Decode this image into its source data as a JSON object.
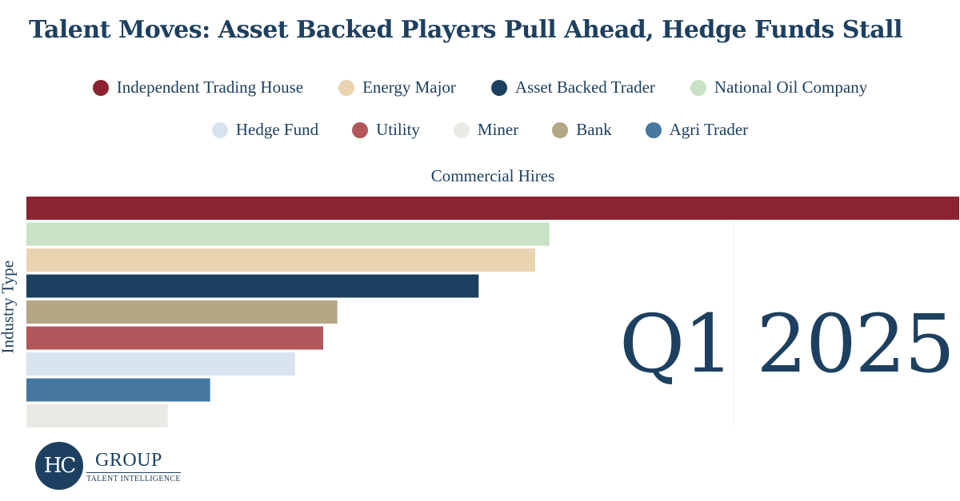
{
  "title": "Talent Moves: Asset Backed Players Pull Ahead, Hedge Funds Stall",
  "period": "Q1 2025",
  "logo": {
    "mark": "HC",
    "name": "GROUP",
    "tagline": "TALENT INTELLIGENCE"
  },
  "legend": [
    {
      "name": "Independent Trading House",
      "color": "#8b2332"
    },
    {
      "name": "Energy Major",
      "color": "#ead4b0"
    },
    {
      "name": "Asset Backed Trader",
      "color": "#1e4060"
    },
    {
      "name": "National Oil Company",
      "color": "#c8e2c6"
    },
    {
      "name": "Hedge Fund",
      "color": "#d8e4f0"
    },
    {
      "name": "Utility",
      "color": "#b1575c"
    },
    {
      "name": "Miner",
      "color": "#ebe9e4"
    },
    {
      "name": "Bank",
      "color": "#b3a785"
    },
    {
      "name": "Agri Trader",
      "color": "#47789f"
    }
  ],
  "chart_data": {
    "type": "bar",
    "orientation": "horizontal",
    "xlabel": "Commercial Hires",
    "ylabel": "Industry Type",
    "grid": false,
    "legend_position": "top",
    "categories": [
      "Independent Trading House",
      "National Oil Company",
      "Energy Major",
      "Asset Backed Trader",
      "Bank",
      "Utility",
      "Hedge Fund",
      "Agri Trader",
      "Miner"
    ],
    "values": [
      66,
      37,
      36,
      32,
      22,
      21,
      19,
      13,
      10
    ],
    "colors": [
      "#8b2332",
      "#c8e2c6",
      "#ead4b0",
      "#1e4060",
      "#b3a785",
      "#b1575c",
      "#d8e4f0",
      "#47789f",
      "#ebe9e4"
    ],
    "xlim": [
      0,
      66
    ]
  }
}
